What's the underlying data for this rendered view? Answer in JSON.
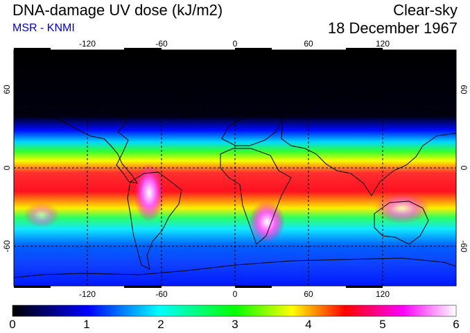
{
  "header": {
    "title": "DNA-damage UV dose (kJ/m2)",
    "subtitle": "MSR - KNMI",
    "condition": "Clear-sky",
    "date": "18 December 1967"
  },
  "map": {
    "lon_range": [
      -180,
      180
    ],
    "lat_range": [
      -90,
      90
    ],
    "lon_ticks": [
      -120,
      -60,
      0,
      60,
      120
    ],
    "lat_ticks": [
      -60,
      0,
      60
    ],
    "lon_tick_labels": [
      "-120",
      "-60",
      "0",
      "60",
      "120"
    ],
    "lat_tick_labels": [
      "-60",
      "0",
      "60"
    ],
    "gridlines": true
  },
  "colorbar": {
    "labels": [
      "0",
      "1",
      "2",
      "3",
      "4",
      "5",
      "6"
    ],
    "colors": [
      "#000000",
      "#0000ff",
      "#00ffff",
      "#00ff00",
      "#ffff00",
      "#ff0000",
      "#ff00ff",
      "#ffffff"
    ]
  }
}
